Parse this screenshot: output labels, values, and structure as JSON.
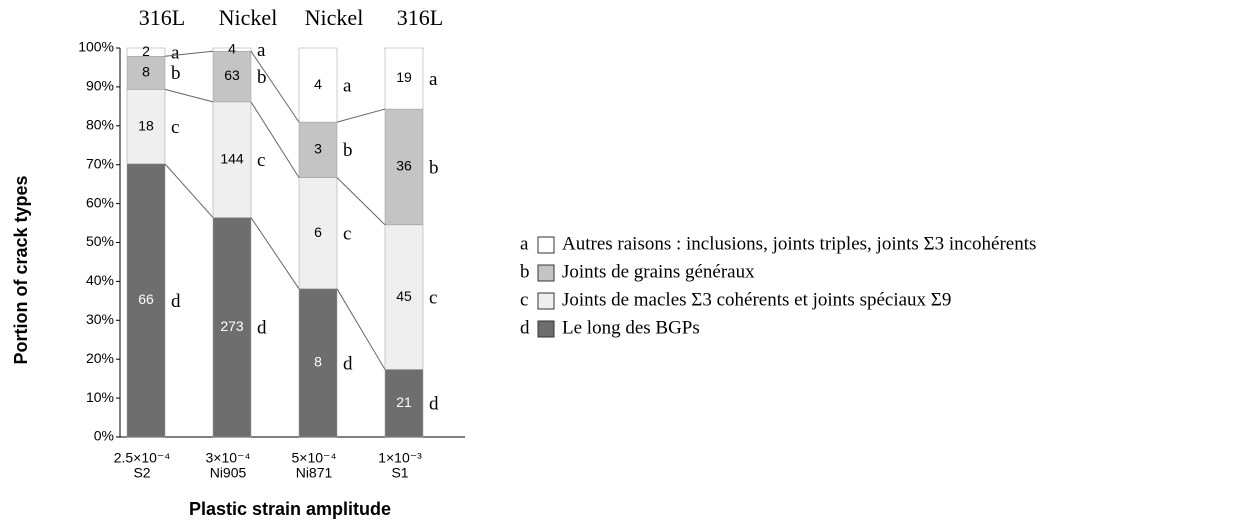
{
  "chart_data": {
    "type": "bar",
    "stack": "percent",
    "x_label": "Plastic strain amplitude",
    "y_label": "Portion of crack types",
    "categories": [
      "2.5×10⁻⁴",
      "3×10⁻⁴",
      "5×10⁻⁴",
      "1×10⁻³"
    ],
    "specimens": [
      "S2",
      "Ni905",
      "Ni871",
      "S1"
    ],
    "materials": [
      "316L",
      "Nickel",
      "Nickel",
      "316L"
    ],
    "series": [
      {
        "key": "a",
        "name": "Autres raisons : inclusions, joints triples, joints Σ3 incohérents",
        "color": "#ffffff",
        "values": [
          2,
          4,
          4,
          19
        ]
      },
      {
        "key": "b",
        "name": "Joints de grains généraux",
        "color": "#c4c4c4",
        "values": [
          8,
          63,
          3,
          36
        ]
      },
      {
        "key": "c",
        "name": "Joints de macles  Σ3 cohérents et joints spéciaux Σ9",
        "color": "#efefef",
        "values": [
          18,
          144,
          6,
          45
        ]
      },
      {
        "key": "d",
        "name": "Le long des BGPs",
        "color": "#6e6e6e",
        "values": [
          66,
          273,
          8,
          21
        ]
      }
    ],
    "ylim": [
      0,
      100
    ],
    "yticks": [
      {
        "value": 0,
        "label": "0%"
      },
      {
        "value": 10,
        "label": "10%"
      },
      {
        "value": 20,
        "label": "20%"
      },
      {
        "value": 30,
        "label": "30%"
      },
      {
        "value": 40,
        "label": "40%"
      },
      {
        "value": 50,
        "label": "50%"
      },
      {
        "value": 60,
        "label": "60%"
      },
      {
        "value": 70,
        "label": "70%"
      },
      {
        "value": 80,
        "label": "80%"
      },
      {
        "value": 90,
        "label": "90%"
      },
      {
        "value": 100,
        "label": "100%"
      }
    ],
    "legend": "right"
  }
}
